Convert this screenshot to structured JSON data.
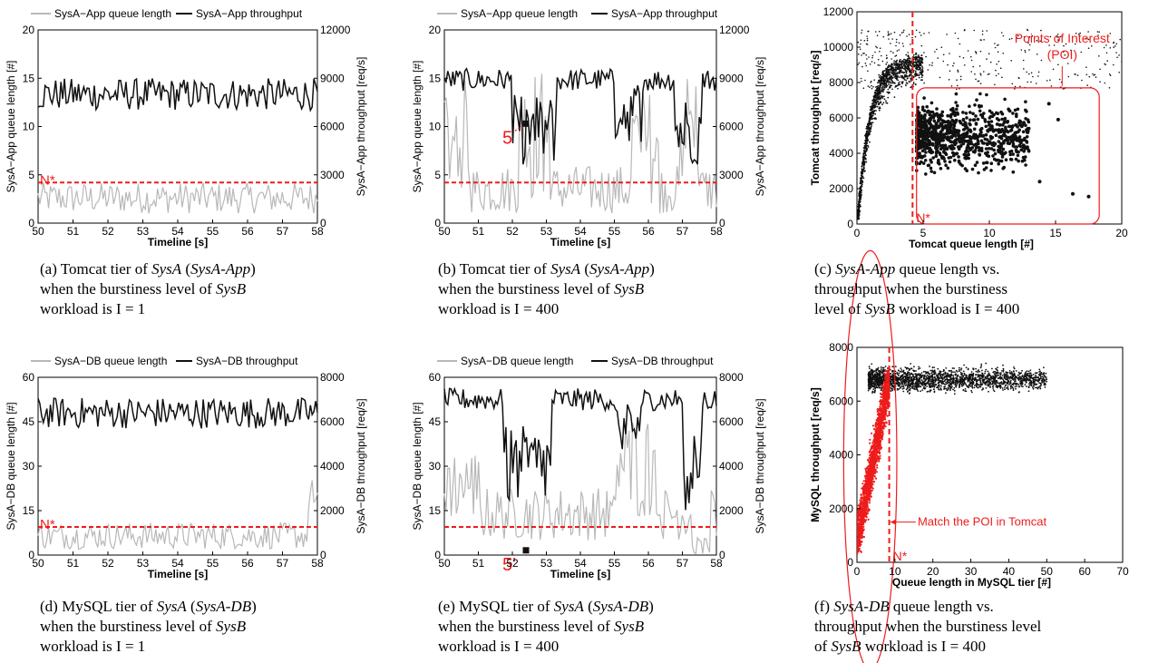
{
  "panels": [
    {
      "id": "a",
      "kind": "timeseries",
      "legend": [
        "SysA−App queue length",
        "SysA−App throughput"
      ],
      "xlabel": "Timeline [s]",
      "ylabel_left": "SysA−App queue length [#]",
      "ylabel_right": "SysA−App throughput [req/s]",
      "xlim": [
        50,
        58
      ],
      "ylim_left": [
        0,
        20
      ],
      "ylim_right": [
        0,
        12000
      ],
      "xticks": [
        "50",
        "51",
        "52",
        "53",
        "54",
        "55",
        "56",
        "57",
        "58"
      ],
      "yticks_left": [
        "0",
        "5",
        "10",
        "15",
        "20"
      ],
      "yticks_right": [
        "0",
        "3000",
        "6000",
        "9000",
        "12000"
      ],
      "nstar_value": 4.2,
      "nstar_label": "N*",
      "caption": [
        [
          [
            "(a) Tomcat tier of ",
            false
          ],
          [
            "SysA",
            true
          ],
          [
            " (",
            false
          ],
          [
            "SysA-App",
            true
          ],
          [
            ")",
            false
          ]
        ],
        [
          [
            "when the burstiness level of ",
            false
          ],
          [
            "SysB",
            true
          ]
        ],
        [
          [
            "workload is I = 1",
            false
          ]
        ]
      ]
    },
    {
      "id": "b",
      "kind": "timeseries",
      "legend": [
        "SysA−App queue length",
        "SysA−App throughput"
      ],
      "xlabel": "Timeline [s]",
      "ylabel_left": "SysA−App queue length [#]",
      "ylabel_right": "SysA−App throughput [req/s]",
      "xlim": [
        50,
        58
      ],
      "ylim_left": [
        0,
        20
      ],
      "ylim_right": [
        0,
        12000
      ],
      "xticks": [
        "50",
        "51",
        "52",
        "53",
        "54",
        "55",
        "56",
        "57",
        "58"
      ],
      "yticks_left": [
        "0",
        "5",
        "10",
        "15",
        "20"
      ],
      "yticks_right": [
        "0",
        "3000",
        "6000",
        "9000",
        "12000"
      ],
      "nstar_value": 4.2,
      "nstar_label": "",
      "marker": {
        "label": "5",
        "x": 52.4,
        "y": 10.3
      },
      "caption": [
        [
          [
            "(b) Tomcat tier of ",
            false
          ],
          [
            "SysA",
            true
          ],
          [
            " (",
            false
          ],
          [
            "SysA-App",
            true
          ],
          [
            ")",
            false
          ]
        ],
        [
          [
            "when the burstiness level of ",
            false
          ],
          [
            "SysB",
            true
          ]
        ],
        [
          [
            "workload is I = 400",
            false
          ]
        ]
      ]
    },
    {
      "id": "c",
      "kind": "scatter",
      "xlabel": "Tomcat queue length [#]",
      "ylabel": "Tomcat throughput [req/s]",
      "xlim": [
        0,
        20
      ],
      "ylim": [
        0,
        12000
      ],
      "xticks": [
        "0",
        "5",
        "10",
        "15",
        "20"
      ],
      "yticks": [
        "0",
        "2000",
        "4000",
        "6000",
        "8000",
        "10000",
        "12000"
      ],
      "nstar_value": 4.2,
      "nstar_label": "N*",
      "poi_label": [
        "Points of Interest",
        "(POI)"
      ],
      "caption": [
        [
          [
            "(c) ",
            false
          ],
          [
            "SysA-App",
            true
          ],
          [
            " queue length vs.",
            false
          ]
        ],
        [
          [
            "throughput when the burstiness",
            false
          ]
        ],
        [
          [
            "level of ",
            false
          ],
          [
            "SysB",
            true
          ],
          [
            " workload is I = 400",
            false
          ]
        ]
      ]
    },
    {
      "id": "d",
      "kind": "timeseries",
      "legend": [
        "SysA−DB queue length",
        "SysA−DB throughput"
      ],
      "xlabel": "Timeline [s]",
      "ylabel_left": "SysA−DB queue length [#]",
      "ylabel_right": "SysA−DB throughput [req/s]",
      "xlim": [
        50,
        58
      ],
      "ylim_left": [
        0,
        60
      ],
      "ylim_right": [
        0,
        8000
      ],
      "xticks": [
        "50",
        "51",
        "52",
        "53",
        "54",
        "55",
        "56",
        "57",
        "58"
      ],
      "yticks_left": [
        "0",
        "15",
        "30",
        "45",
        "60"
      ],
      "yticks_right": [
        "0",
        "2000",
        "4000",
        "6000",
        "8000"
      ],
      "nstar_value": 9.5,
      "nstar_label": "N*",
      "caption": [
        [
          [
            "(d) MySQL tier of ",
            false
          ],
          [
            "SysA",
            true
          ],
          [
            " (",
            false
          ],
          [
            "SysA-DB",
            true
          ],
          [
            ")",
            false
          ]
        ],
        [
          [
            "when the burstiness level of ",
            false
          ],
          [
            "SysB",
            true
          ]
        ],
        [
          [
            "workload is I = 1",
            false
          ]
        ]
      ]
    },
    {
      "id": "e",
      "kind": "timeseries",
      "legend": [
        "SysA−DB queue length",
        "SysA−DB throughput"
      ],
      "xlabel": "Timeline [s]",
      "ylabel_left": "SysA−DB queue length [#]",
      "ylabel_right": "SysA−DB throughput [req/s]",
      "xlim": [
        50,
        58
      ],
      "ylim_left": [
        0,
        60
      ],
      "ylim_right": [
        0,
        8000
      ],
      "xticks": [
        "50",
        "51",
        "52",
        "53",
        "54",
        "55",
        "56",
        "57",
        "58"
      ],
      "yticks_left": [
        "0",
        "15",
        "30",
        "45",
        "60"
      ],
      "yticks_right": [
        "0",
        "2000",
        "4000",
        "6000",
        "8000"
      ],
      "nstar_value": 9.5,
      "nstar_label": "",
      "marker": {
        "label": "5'",
        "x": 52.4,
        "y": 1.6
      },
      "caption": [
        [
          [
            "(e) MySQL tier of ",
            false
          ],
          [
            "SysA",
            true
          ],
          [
            " (",
            false
          ],
          [
            "SysA-DB",
            true
          ],
          [
            ")",
            false
          ]
        ],
        [
          [
            "when the burstiness level of ",
            false
          ],
          [
            "SysB",
            true
          ]
        ],
        [
          [
            "workload is I = 400",
            false
          ]
        ]
      ]
    },
    {
      "id": "f",
      "kind": "scatter",
      "xlabel": "Queue length in MySQL tier [#]",
      "ylabel": "MySQL throughput [req/s]",
      "xlim": [
        0,
        70
      ],
      "ylim": [
        0,
        8000
      ],
      "xticks": [
        "0",
        "10",
        "20",
        "30",
        "40",
        "50",
        "60",
        "70"
      ],
      "yticks": [
        "0",
        "2000",
        "4000",
        "6000",
        "8000"
      ],
      "nstar_value": 8.5,
      "nstar_label": "N*",
      "match_label": "Match the POI in Tomcat",
      "caption": [
        [
          [
            "(f) ",
            false
          ],
          [
            "SysA-DB",
            true
          ],
          [
            " queue length vs.",
            false
          ]
        ],
        [
          [
            "throughput when the burstiness level",
            false
          ]
        ],
        [
          [
            "of ",
            false
          ],
          [
            "SysB",
            true
          ],
          [
            " workload is I = 400",
            false
          ]
        ]
      ]
    }
  ],
  "colors": {
    "queue_line": "#b8b8b8",
    "throughput_line": "#111111",
    "nstar": "#ee1c1c",
    "highlight": "#ee1c1c",
    "scatter": "#111111"
  },
  "chart_data": [
    {
      "type": "line",
      "panel": "a",
      "x_range": [
        50,
        58
      ],
      "series": [
        {
          "name": "SysA−App queue length",
          "axis": "left",
          "mean": 2.5,
          "range": [
            1,
            5.3
          ]
        },
        {
          "name": "SysA−App throughput",
          "axis": "right",
          "mean": 8000,
          "range": [
            6200,
            9500
          ]
        }
      ],
      "xlabel": "Timeline [s]",
      "ylim_left": [
        0,
        20
      ],
      "ylim_right": [
        0,
        12000
      ]
    },
    {
      "type": "line",
      "panel": "b",
      "x_range": [
        50,
        58
      ],
      "series": [
        {
          "name": "SysA−App queue length",
          "axis": "left",
          "mean": 5,
          "range": [
            1,
            17
          ]
        },
        {
          "name": "SysA−App throughput",
          "axis": "right",
          "mean": 8200,
          "range": [
            3000,
            10200
          ]
        }
      ],
      "xlabel": "Timeline [s]",
      "ylim_left": [
        0,
        20
      ],
      "ylim_right": [
        0,
        12000
      ]
    },
    {
      "type": "scatter",
      "panel": "c",
      "groups": [
        {
          "name": "",
          "x_range": [
            0,
            20
          ],
          "y_range": [
            1000,
            11000
          ]
        },
        {
          "name": "Points of Interest (POI)",
          "x_range": [
            4.5,
            18
          ],
          "y_range": [
            1500,
            7600
          ]
        }
      ],
      "xlim": [
        0,
        20
      ],
      "ylim": [
        0,
        12000
      ]
    },
    {
      "type": "line",
      "panel": "d",
      "x_range": [
        50,
        58
      ],
      "series": [
        {
          "name": "SysA−DB queue length",
          "axis": "left",
          "mean": 7,
          "range": [
            1,
            27
          ]
        },
        {
          "name": "SysA−DB throughput",
          "axis": "right",
          "mean": 6300,
          "range": [
            4300,
            7300
          ]
        }
      ],
      "xlabel": "Timeline [s]",
      "ylim_left": [
        0,
        60
      ],
      "ylim_right": [
        0,
        8000
      ]
    },
    {
      "type": "line",
      "panel": "e",
      "x_range": [
        50,
        58
      ],
      "series": [
        {
          "name": "SysA−DB queue length",
          "axis": "left",
          "mean": 16,
          "range": [
            0.5,
            50
          ]
        },
        {
          "name": "SysA−DB throughput",
          "axis": "right",
          "mean": 6500,
          "range": [
            1600,
            7800
          ]
        }
      ],
      "xlabel": "Timeline [s]",
      "ylim_left": [
        0,
        60
      ],
      "ylim_right": [
        0,
        8000
      ]
    },
    {
      "type": "scatter",
      "panel": "f",
      "groups": [
        {
          "name": "",
          "x_range": [
            3,
            52
          ],
          "y_range": [
            5800,
            7600
          ]
        },
        {
          "name": "Match the POI in Tomcat",
          "x_range": [
            0,
            8.5
          ],
          "y_range": [
            500,
            6900
          ]
        }
      ],
      "xlim": [
        0,
        70
      ],
      "ylim": [
        0,
        8000
      ]
    }
  ]
}
